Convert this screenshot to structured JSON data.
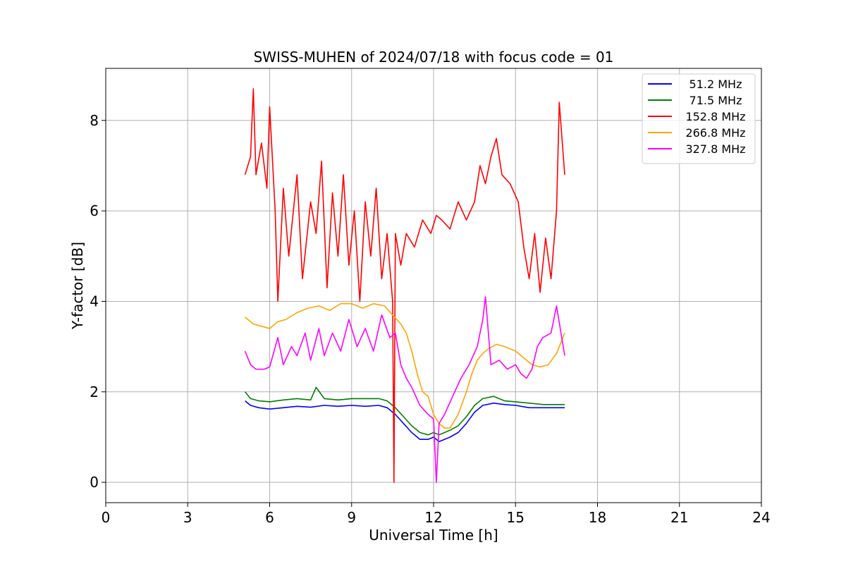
{
  "chart_data": {
    "type": "line",
    "title": "SWISS-MUHEN of 2024/07/18 with focus code = 01",
    "xlabel": "Universal Time [h]",
    "ylabel": "Y-factor [dB]",
    "xlim": [
      0,
      24
    ],
    "ylim": [
      -0.45,
      9.15
    ],
    "xticks": [
      0,
      3,
      6,
      9,
      12,
      15,
      18,
      21,
      24
    ],
    "yticks": [
      0,
      2,
      4,
      6,
      8
    ],
    "grid": true,
    "legend_position": "top-right",
    "series": [
      {
        "name": "51.2 MHz",
        "color": "#0000ff",
        "x": [
          5.1,
          5.3,
          5.6,
          6.0,
          6.5,
          7.0,
          7.5,
          8.0,
          8.5,
          9.0,
          9.5,
          10.0,
          10.3,
          10.6,
          10.9,
          11.2,
          11.5,
          11.8,
          12.0,
          12.2,
          12.4,
          12.6,
          12.9,
          13.2,
          13.5,
          13.8,
          14.2,
          14.6,
          15.0,
          15.5,
          16.0,
          16.5,
          16.8
        ],
        "y": [
          1.8,
          1.7,
          1.65,
          1.62,
          1.65,
          1.68,
          1.66,
          1.7,
          1.68,
          1.7,
          1.68,
          1.7,
          1.65,
          1.5,
          1.3,
          1.1,
          0.95,
          0.95,
          1.0,
          0.9,
          0.95,
          1.0,
          1.1,
          1.3,
          1.55,
          1.7,
          1.75,
          1.72,
          1.7,
          1.65,
          1.65,
          1.65,
          1.65
        ]
      },
      {
        "name": "71.5 MHz",
        "color": "#008000",
        "x": [
          5.1,
          5.3,
          5.6,
          6.0,
          6.5,
          7.0,
          7.5,
          7.7,
          8.0,
          8.5,
          9.0,
          9.5,
          10.0,
          10.3,
          10.6,
          10.9,
          11.2,
          11.5,
          11.8,
          12.0,
          12.2,
          12.4,
          12.6,
          12.9,
          13.2,
          13.5,
          13.8,
          14.2,
          14.6,
          15.0,
          15.5,
          16.0,
          16.5,
          16.8
        ],
        "y": [
          2.0,
          1.85,
          1.8,
          1.78,
          1.82,
          1.85,
          1.82,
          2.1,
          1.85,
          1.82,
          1.85,
          1.85,
          1.85,
          1.8,
          1.65,
          1.45,
          1.25,
          1.1,
          1.05,
          1.1,
          1.05,
          1.1,
          1.15,
          1.25,
          1.45,
          1.7,
          1.85,
          1.9,
          1.8,
          1.78,
          1.75,
          1.72,
          1.72,
          1.72
        ]
      },
      {
        "name": "152.8 MHz",
        "color": "#ff0000",
        "x": [
          5.1,
          5.3,
          5.4,
          5.5,
          5.7,
          5.9,
          6.0,
          6.2,
          6.3,
          6.5,
          6.7,
          7.0,
          7.2,
          7.5,
          7.7,
          7.9,
          8.1,
          8.3,
          8.5,
          8.7,
          8.9,
          9.1,
          9.3,
          9.5,
          9.7,
          9.9,
          10.1,
          10.3,
          10.5,
          10.55,
          10.6,
          10.8,
          11.0,
          11.3,
          11.6,
          11.9,
          12.1,
          12.3,
          12.6,
          12.9,
          13.2,
          13.5,
          13.7,
          13.9,
          14.1,
          14.3,
          14.5,
          14.8,
          15.1,
          15.3,
          15.5,
          15.7,
          15.9,
          16.1,
          16.3,
          16.5,
          16.6,
          16.8
        ],
        "y": [
          6.8,
          7.2,
          8.7,
          6.8,
          7.5,
          6.5,
          8.3,
          6.0,
          4.0,
          6.5,
          5.0,
          6.8,
          4.5,
          6.2,
          5.5,
          7.1,
          4.3,
          6.4,
          5.0,
          6.8,
          4.8,
          6.0,
          4.0,
          6.2,
          5.0,
          6.5,
          4.5,
          5.5,
          4.0,
          0.0,
          5.5,
          4.8,
          5.5,
          5.2,
          5.8,
          5.5,
          5.9,
          5.8,
          5.6,
          6.2,
          5.8,
          6.2,
          7.0,
          6.6,
          7.2,
          7.6,
          6.8,
          6.6,
          6.2,
          5.2,
          4.5,
          5.5,
          4.2,
          5.4,
          4.5,
          6.0,
          8.4,
          6.8
        ]
      },
      {
        "name": "266.8 MHz",
        "color": "#ffa500",
        "x": [
          5.1,
          5.4,
          5.7,
          6.0,
          6.3,
          6.6,
          7.0,
          7.4,
          7.8,
          8.2,
          8.6,
          9.0,
          9.4,
          9.8,
          10.2,
          10.5,
          10.8,
          11.0,
          11.2,
          11.4,
          11.6,
          11.8,
          12.0,
          12.2,
          12.4,
          12.6,
          12.9,
          13.2,
          13.4,
          13.6,
          13.8,
          14.0,
          14.3,
          14.6,
          15.0,
          15.3,
          15.6,
          15.9,
          16.2,
          16.5,
          16.8
        ],
        "y": [
          3.65,
          3.5,
          3.45,
          3.4,
          3.55,
          3.6,
          3.75,
          3.85,
          3.9,
          3.8,
          3.95,
          3.95,
          3.85,
          3.95,
          3.9,
          3.7,
          3.5,
          3.3,
          2.9,
          2.4,
          2.0,
          1.9,
          1.5,
          1.3,
          1.2,
          1.2,
          1.5,
          2.0,
          2.4,
          2.7,
          2.85,
          2.95,
          3.05,
          3.0,
          2.9,
          2.75,
          2.6,
          2.55,
          2.6,
          2.85,
          3.3
        ]
      },
      {
        "name": "327.8 MHz",
        "color": "#ff00ff",
        "x": [
          5.1,
          5.3,
          5.5,
          5.8,
          6.0,
          6.3,
          6.5,
          6.8,
          7.0,
          7.3,
          7.5,
          7.8,
          8.0,
          8.3,
          8.6,
          8.9,
          9.2,
          9.5,
          9.8,
          10.1,
          10.4,
          10.6,
          10.8,
          11.0,
          11.2,
          11.5,
          11.8,
          12.0,
          12.1,
          12.2,
          12.4,
          12.7,
          13.0,
          13.3,
          13.6,
          13.8,
          13.9,
          14.1,
          14.4,
          14.7,
          15.0,
          15.2,
          15.4,
          15.6,
          15.8,
          16.0,
          16.3,
          16.5,
          16.8
        ],
        "y": [
          2.9,
          2.6,
          2.5,
          2.5,
          2.55,
          3.2,
          2.6,
          3.0,
          2.8,
          3.3,
          2.7,
          3.4,
          2.8,
          3.3,
          2.9,
          3.6,
          3.0,
          3.4,
          2.9,
          3.7,
          3.2,
          3.3,
          2.6,
          2.3,
          2.1,
          1.7,
          1.5,
          1.4,
          0.0,
          1.3,
          1.5,
          1.9,
          2.3,
          2.6,
          3.0,
          3.6,
          4.1,
          2.6,
          2.7,
          2.5,
          2.6,
          2.4,
          2.3,
          2.5,
          3.0,
          3.2,
          3.3,
          3.9,
          2.8
        ]
      }
    ]
  }
}
